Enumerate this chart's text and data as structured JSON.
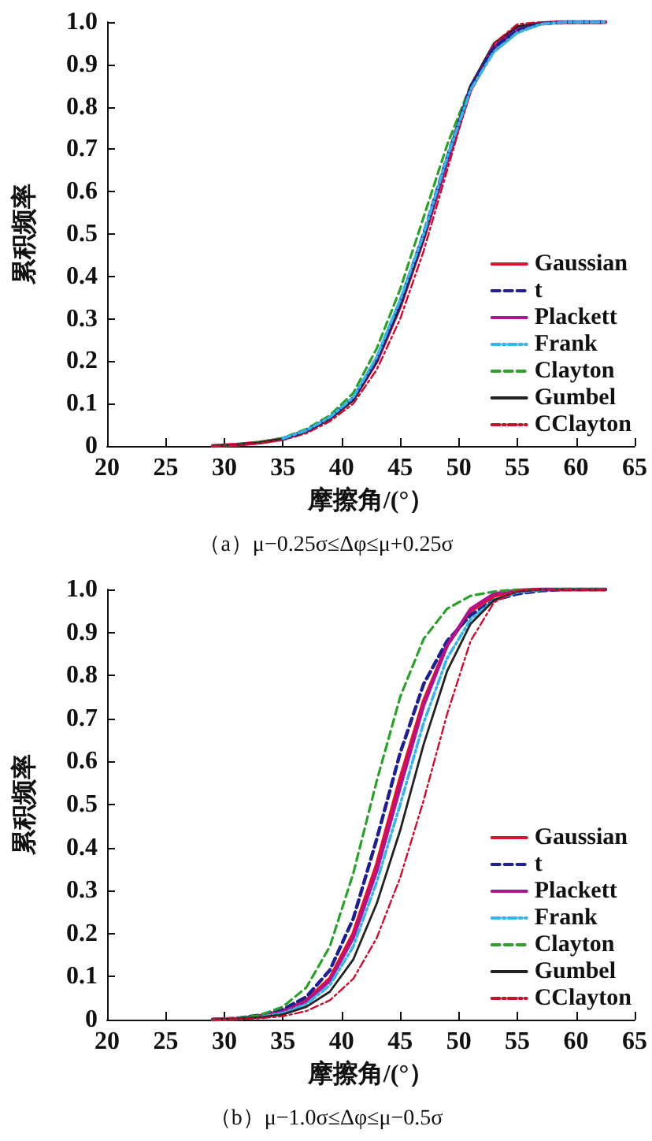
{
  "chart_data": [
    {
      "type": "line",
      "title": "（a）μ−0.25σ≤Δφ≤μ+0.25σ",
      "xlabel": "摩擦角/(°）",
      "ylabel": "累积频率",
      "xlim": [
        20,
        65
      ],
      "xticks": [
        20,
        25,
        30,
        35,
        40,
        45,
        50,
        55,
        60,
        65
      ],
      "ylim": [
        0,
        1
      ],
      "yticks": [
        0,
        0.1,
        0.2,
        0.3,
        0.4,
        0.5,
        0.6,
        0.7,
        0.8,
        0.9,
        {
          "value": 1,
          "label": "1.0"
        }
      ],
      "legend": "bottom right",
      "grid": false,
      "marker": "none",
      "x": [
        29,
        31,
        33,
        35,
        37,
        39,
        41,
        43,
        45,
        47,
        49,
        51,
        53,
        55,
        57,
        59,
        62.5
      ],
      "series": [
        {
          "name": "Gaussian",
          "color": "#e0102f",
          "line_style": "solid",
          "values": [
            0,
            0.003,
            0.008,
            0.017,
            0.035,
            0.065,
            0.11,
            0.2,
            0.33,
            0.49,
            0.67,
            0.84,
            0.94,
            0.985,
            0.997,
            1,
            1
          ]
        },
        {
          "name": "t",
          "color": "#1f1f8f",
          "line_style": "dashed",
          "values": [
            null,
            null,
            null,
            0.017,
            0.036,
            0.067,
            0.113,
            0.205,
            0.34,
            0.5,
            0.68,
            0.845,
            0.94,
            0.98,
            0.996,
            1,
            1
          ]
        },
        {
          "name": "Plackett",
          "color": "#b0148c",
          "line_style": "solid",
          "values": [
            0,
            0.003,
            0.008,
            0.017,
            0.035,
            0.066,
            0.112,
            0.2,
            0.33,
            0.49,
            0.67,
            0.84,
            0.94,
            0.985,
            0.997,
            1,
            1
          ]
        },
        {
          "name": "Frank",
          "color": "#3ab4e6",
          "line_style": "dashdot",
          "values": [
            null,
            null,
            null,
            0.018,
            0.037,
            0.068,
            0.115,
            0.21,
            0.345,
            0.5,
            0.68,
            0.84,
            0.93,
            0.975,
            0.995,
            1,
            1
          ]
        },
        {
          "name": "Clayton",
          "color": "#2ca02c",
          "line_style": "dashed",
          "values": [
            0,
            0.003,
            0.009,
            0.019,
            0.04,
            0.072,
            0.125,
            0.23,
            0.37,
            0.54,
            0.71,
            0.85,
            0.93,
            0.975,
            0.995,
            1,
            1
          ]
        },
        {
          "name": "Gumbel",
          "color": "#222222",
          "line_style": "solid",
          "values": [
            0,
            0.003,
            0.008,
            0.017,
            0.034,
            0.064,
            0.108,
            0.2,
            0.33,
            0.49,
            0.68,
            0.85,
            0.95,
            0.99,
            0.998,
            1,
            1
          ]
        },
        {
          "name": "CClayton",
          "color": "#c8102e",
          "line_style": "dashdot",
          "values": [
            0,
            0.002,
            0.006,
            0.014,
            0.03,
            0.058,
            0.1,
            0.18,
            0.3,
            0.46,
            0.65,
            0.84,
            0.95,
            0.995,
            1,
            1,
            1
          ]
        }
      ]
    },
    {
      "type": "line",
      "title": "（b）μ−1.0σ≤Δφ≤μ−0.5σ",
      "xlabel": "摩擦角/(°）",
      "ylabel": "累积频率",
      "xlim": [
        20,
        65
      ],
      "xticks": [
        20,
        25,
        30,
        35,
        40,
        45,
        50,
        55,
        60,
        65
      ],
      "ylim": [
        0,
        1
      ],
      "yticks": [
        0,
        0.1,
        0.2,
        0.3,
        0.4,
        0.5,
        0.6,
        0.7,
        0.8,
        0.9,
        {
          "value": 1,
          "label": "1.0"
        }
      ],
      "legend": "bottom right",
      "grid": false,
      "marker": "none",
      "x": [
        29,
        31,
        33,
        35,
        37,
        39,
        41,
        43,
        45,
        47,
        49,
        51,
        53,
        55,
        57,
        59,
        62.5
      ],
      "series": [
        {
          "name": "Gaussian",
          "color": "#e0102f",
          "line_style": "solid",
          "values": [
            0,
            0.002,
            0.008,
            0.02,
            0.045,
            0.095,
            0.2,
            0.36,
            0.56,
            0.74,
            0.87,
            0.95,
            0.985,
            0.997,
            1,
            1,
            1
          ]
        },
        {
          "name": "t",
          "color": "#1f1f8f",
          "line_style": "dashed",
          "values": [
            0,
            0.003,
            0.01,
            0.024,
            0.053,
            0.115,
            0.235,
            0.42,
            0.62,
            0.78,
            0.88,
            0.94,
            0.975,
            0.99,
            0.997,
            1,
            1
          ]
        },
        {
          "name": "Plackett",
          "color": "#b0148c",
          "line_style": "solid",
          "values": [
            0,
            0.002,
            0.007,
            0.018,
            0.042,
            0.09,
            0.19,
            0.345,
            0.54,
            0.73,
            0.87,
            0.955,
            0.99,
            0.998,
            1,
            1,
            1
          ]
        },
        {
          "name": "Frank",
          "color": "#3ab4e6",
          "line_style": "dashdot",
          "values": [
            0,
            0.002,
            0.006,
            0.015,
            0.036,
            0.08,
            0.17,
            0.32,
            0.5,
            0.69,
            0.84,
            0.93,
            0.975,
            0.993,
            0.999,
            1,
            1
          ]
        },
        {
          "name": "Clayton",
          "color": "#2ca02c",
          "line_style": "dashed",
          "values": [
            0,
            0.003,
            0.01,
            0.03,
            0.075,
            0.17,
            0.34,
            0.555,
            0.75,
            0.885,
            0.955,
            0.985,
            0.995,
            1,
            1,
            1,
            1
          ]
        },
        {
          "name": "Gumbel",
          "color": "#222222",
          "line_style": "solid",
          "values": [
            0,
            0.002,
            0.005,
            0.012,
            0.03,
            0.065,
            0.14,
            0.27,
            0.44,
            0.64,
            0.81,
            0.92,
            0.975,
            0.995,
            1,
            1,
            1
          ]
        },
        {
          "name": "CClayton",
          "color": "#c8102e",
          "line_style": "dashdot",
          "values": [
            0,
            0.001,
            0.003,
            0.008,
            0.02,
            0.045,
            0.095,
            0.19,
            0.33,
            0.51,
            0.71,
            0.88,
            0.97,
            0.997,
            1,
            1,
            1
          ]
        }
      ]
    }
  ]
}
